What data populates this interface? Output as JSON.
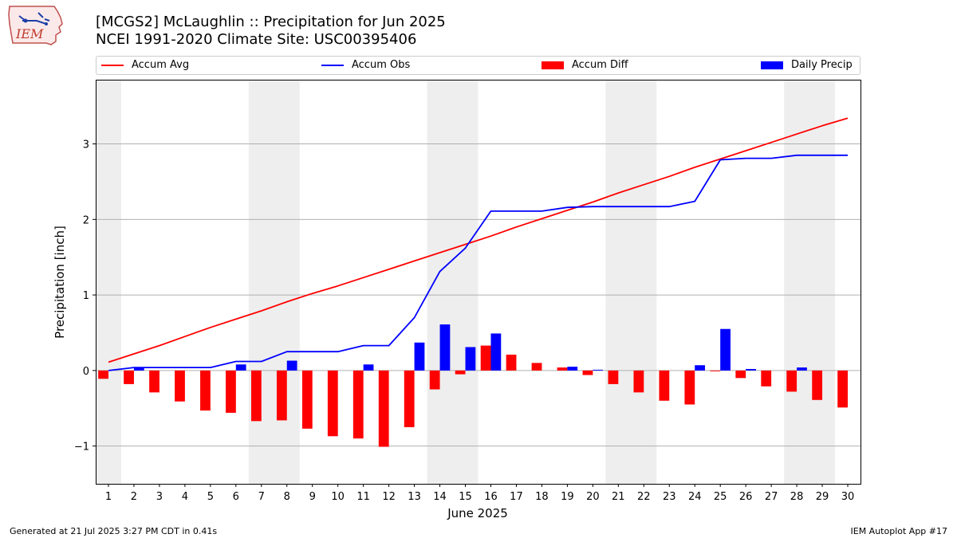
{
  "header": {
    "title_line1": "[MCGS2] McLaughlin :: Precipitation for Jun 2025",
    "title_line2": "NCEI 1991-2020 Climate Site: USC00395406"
  },
  "logo": {
    "text": "IEM"
  },
  "legend": {
    "accum_avg": "Accum Avg",
    "accum_obs": "Accum Obs",
    "accum_diff": "Accum Diff",
    "daily_precip": "Daily Precip"
  },
  "colors": {
    "accum_avg": "#ff0000",
    "accum_obs": "#0000ff",
    "accum_diff": "#ff0000",
    "daily_precip": "#0000ff",
    "weekend_band": "#eeeeee",
    "grid": "#b0b0b0"
  },
  "footer": {
    "generated": "Generated at 21 Jul 2025 3:27 PM CDT in 0.41s",
    "app": "IEM Autoplot App #17"
  },
  "chart_data": {
    "type": "bar",
    "xlabel": "June 2025",
    "ylabel": "Precipitation [inch]",
    "x": [
      1,
      2,
      3,
      4,
      5,
      6,
      7,
      8,
      9,
      10,
      11,
      12,
      13,
      14,
      15,
      16,
      17,
      18,
      19,
      20,
      21,
      22,
      23,
      24,
      25,
      26,
      27,
      28,
      29,
      30
    ],
    "xlim": [
      0.5,
      30.5
    ],
    "ylim": [
      -1.5,
      3.85
    ],
    "yticks": [
      -1,
      0,
      1,
      2,
      3
    ],
    "grid": true,
    "legend_position": "top",
    "weekend_bands": [
      [
        0.5,
        1.5
      ],
      [
        6.5,
        8.5
      ],
      [
        13.5,
        15.5
      ],
      [
        20.5,
        22.5
      ],
      [
        27.5,
        29.5
      ]
    ],
    "series": [
      {
        "name": "Accum Avg",
        "kind": "line",
        "values": [
          0.11,
          0.22,
          0.33,
          0.45,
          0.57,
          0.68,
          0.79,
          0.91,
          1.02,
          1.12,
          1.23,
          1.34,
          1.45,
          1.56,
          1.67,
          1.78,
          1.9,
          2.01,
          2.12,
          2.23,
          2.35,
          2.46,
          2.57,
          2.69,
          2.8,
          2.91,
          3.02,
          3.13,
          3.24,
          3.34
        ]
      },
      {
        "name": "Accum Obs",
        "kind": "line",
        "values": [
          0.0,
          0.04,
          0.04,
          0.04,
          0.04,
          0.12,
          0.12,
          0.25,
          0.25,
          0.25,
          0.33,
          0.33,
          0.7,
          1.31,
          1.62,
          2.11,
          2.11,
          2.11,
          2.16,
          2.17,
          2.17,
          2.17,
          2.17,
          2.24,
          2.79,
          2.81,
          2.81,
          2.85,
          2.85,
          2.85
        ]
      },
      {
        "name": "Accum Diff",
        "kind": "bar",
        "values": [
          -0.11,
          -0.18,
          -0.29,
          -0.41,
          -0.53,
          -0.56,
          -0.67,
          -0.66,
          -0.77,
          -0.87,
          -0.9,
          -1.01,
          -0.75,
          -0.25,
          -0.05,
          0.33,
          0.21,
          0.1,
          0.04,
          -0.06,
          -0.18,
          -0.29,
          -0.4,
          -0.45,
          -0.01,
          -0.1,
          -0.21,
          -0.28,
          -0.39,
          -0.49
        ]
      },
      {
        "name": "Daily Precip",
        "kind": "bar",
        "values": [
          0.0,
          0.04,
          0.0,
          0.0,
          0.0,
          0.08,
          0.0,
          0.13,
          0.0,
          0.0,
          0.08,
          0.0,
          0.37,
          0.61,
          0.31,
          0.49,
          0.0,
          0.0,
          0.05,
          0.01,
          0.0,
          0.0,
          0.0,
          0.07,
          0.55,
          0.02,
          0.0,
          0.04,
          0.0,
          0.0
        ]
      }
    ]
  }
}
